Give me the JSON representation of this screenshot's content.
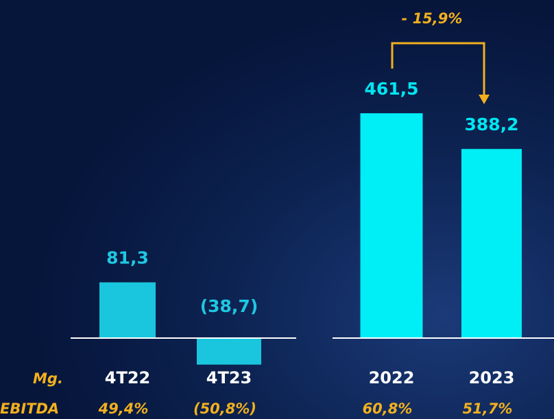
{
  "chart_data": [
    {
      "type": "bar",
      "categories": [
        "4T22",
        "4T23"
      ],
      "values": [
        81.3,
        -38.7
      ],
      "value_labels": [
        "81,3",
        "(38,7)"
      ],
      "color": "#19c6de",
      "ylim": [
        -40,
        160
      ],
      "margin_labels": [
        "49,4%",
        "(50,8%)"
      ]
    },
    {
      "type": "bar",
      "categories": [
        "2022",
        "2023"
      ],
      "values": [
        461.5,
        388.2
      ],
      "value_labels": [
        "461,5",
        "388,2"
      ],
      "color": "#00eef6",
      "ylim": [
        0,
        480
      ],
      "annotation": "- 15,9%",
      "margin_labels": [
        "60,8%",
        "51,7%"
      ]
    }
  ],
  "margin_title": [
    "Mg.",
    "EBITDA"
  ]
}
